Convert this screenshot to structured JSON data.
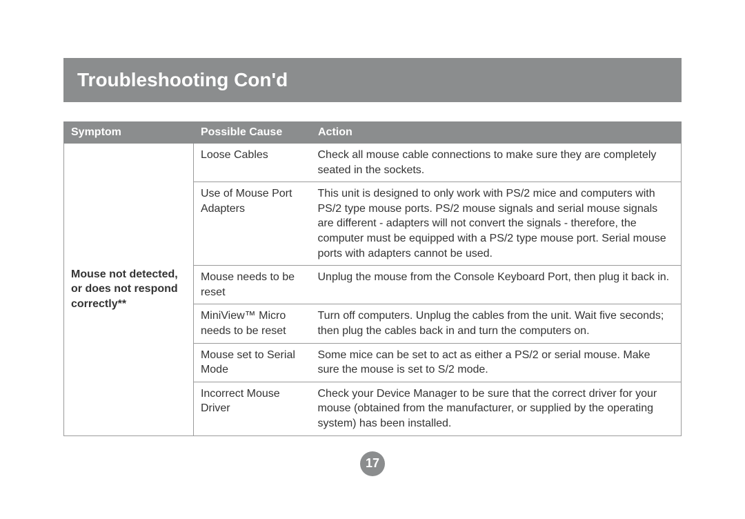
{
  "title": "Troubleshooting Con'd",
  "columns": [
    "Symptom",
    "Possible Cause",
    "Action"
  ],
  "symptom": "Mouse not detected, or does not respond correctly**",
  "rows": [
    {
      "cause": "Loose Cables",
      "action": "Check all mouse cable connections to make sure they are completely seated in the sockets."
    },
    {
      "cause": "Use of Mouse Port Adapters",
      "action": "This unit is designed to only work with PS/2 mice and computers with PS/2 type mouse ports. PS/2 mouse signals and serial mouse signals are different - adapters will not convert the signals - therefore, the computer must be equipped with a PS/2 type mouse port. Serial mouse ports with adapters cannot be used."
    },
    {
      "cause": "Mouse needs to be reset",
      "action": "Unplug the mouse from the Console Keyboard Port, then plug it back in."
    },
    {
      "cause": "MiniView™ Micro needs to be reset",
      "action": "Turn off computers. Unplug the cables from the unit. Wait five seconds; then plug the cables back in and turn the computers on."
    },
    {
      "cause": "Mouse set to Serial Mode",
      "action": "Some mice can be set to act as either a PS/2 or serial mouse. Make sure the mouse is set to S/2 mode."
    },
    {
      "cause": "Incorrect Mouse Driver",
      "action": "Check your Device Manager to be sure that the correct driver for your mouse (obtained from the manufacturer, or supplied by the operating system) has been installed."
    }
  ],
  "page_number": "17",
  "colors": {
    "header_bg": "#8b8d8e",
    "header_text": "#ffffff",
    "border": "#9a9a9a",
    "body_text": "#333333"
  }
}
